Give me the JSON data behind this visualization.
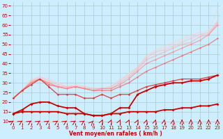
{
  "background_color": "#cceeff",
  "grid_color": "#aacccc",
  "xlabel": "Vent moyen/en rafales ( km/h )",
  "x_ticks": [
    0,
    1,
    2,
    3,
    4,
    5,
    6,
    7,
    8,
    9,
    10,
    11,
    12,
    13,
    14,
    15,
    16,
    17,
    18,
    19,
    20,
    21,
    22,
    23
  ],
  "y_ticks": [
    10,
    15,
    20,
    25,
    30,
    35,
    40,
    45,
    50,
    55,
    60,
    65,
    70
  ],
  "ylim": [
    9,
    72
  ],
  "xlim": [
    -0.3,
    23.3
  ],
  "series": [
    {
      "y": [
        14,
        15,
        15,
        15,
        15,
        15,
        14,
        14,
        14,
        13,
        13,
        14,
        14,
        15,
        15,
        15,
        15,
        16,
        16,
        17,
        17,
        18,
        18,
        19
      ],
      "color": "#cc0000",
      "lw": 1.3,
      "marker": "D",
      "ms": 2.0,
      "alpha": 1.0,
      "zorder": 5
    },
    {
      "y": [
        14,
        16,
        19,
        20,
        20,
        18,
        17,
        17,
        14,
        13,
        13,
        14,
        17,
        17,
        24,
        26,
        28,
        29,
        30,
        30,
        31,
        31,
        32,
        34
      ],
      "color": "#cc0000",
      "lw": 1.3,
      "marker": "D",
      "ms": 2.0,
      "alpha": 1.0,
      "zorder": 5
    },
    {
      "y": [
        22,
        26,
        29,
        32,
        28,
        24,
        24,
        24,
        22,
        22,
        24,
        22,
        24,
        24,
        26,
        28,
        29,
        30,
        31,
        32,
        32,
        32,
        33,
        34
      ],
      "color": "#dd3333",
      "lw": 1.0,
      "marker": "D",
      "ms": 1.8,
      "alpha": 0.85,
      "zorder": 4
    },
    {
      "y": [
        22,
        26,
        30,
        32,
        29,
        28,
        27,
        28,
        27,
        26,
        26,
        26,
        28,
        30,
        33,
        36,
        38,
        40,
        42,
        44,
        46,
        48,
        50,
        53
      ],
      "color": "#ee6666",
      "lw": 1.0,
      "marker": "D",
      "ms": 1.6,
      "alpha": 0.7,
      "zorder": 3
    },
    {
      "y": [
        22,
        26,
        30,
        32,
        30,
        28,
        27,
        28,
        27,
        26,
        27,
        27,
        29,
        32,
        36,
        40,
        42,
        44,
        46,
        48,
        50,
        52,
        55,
        60
      ],
      "color": "#ff8888",
      "lw": 1.0,
      "marker": "D",
      "ms": 1.6,
      "alpha": 0.65,
      "zorder": 3
    },
    {
      "y": [
        22,
        26,
        31,
        32,
        30,
        28,
        28,
        28,
        27,
        27,
        27,
        27,
        30,
        33,
        37,
        42,
        44,
        46,
        48,
        50,
        51,
        54,
        55,
        61
      ],
      "color": "#ffaaaa",
      "lw": 1.0,
      "marker": "D",
      "ms": 1.5,
      "alpha": 0.6,
      "zorder": 2
    },
    {
      "y": [
        22,
        26,
        31,
        33,
        31,
        29,
        28,
        28,
        28,
        27,
        27,
        28,
        31,
        34,
        38,
        43,
        46,
        47,
        49,
        51,
        53,
        55,
        56,
        62
      ],
      "color": "#ffbbbb",
      "lw": 0.9,
      "marker": "D",
      "ms": 1.5,
      "alpha": 0.55,
      "zorder": 2
    },
    {
      "y": [
        22,
        26,
        31,
        33,
        31,
        30,
        28,
        29,
        28,
        27,
        27,
        28,
        31,
        35,
        38,
        44,
        46,
        48,
        50,
        52,
        54,
        55,
        56,
        62
      ],
      "color": "#ffcccc",
      "lw": 0.9,
      "marker": "D",
      "ms": 1.4,
      "alpha": 0.5,
      "zorder": 1
    },
    {
      "y": [
        22,
        26,
        32,
        33,
        32,
        30,
        28,
        29,
        28,
        27,
        27,
        28,
        32,
        35,
        38,
        44,
        47,
        49,
        51,
        53,
        55,
        56,
        57,
        68
      ],
      "color": "#ffcccc",
      "lw": 0.9,
      "marker": "D",
      "ms": 1.4,
      "alpha": 0.45,
      "zorder": 1
    }
  ],
  "arrows": {
    "x": [
      0,
      1,
      2,
      3,
      4,
      5,
      6,
      7,
      8,
      9,
      10,
      11,
      12,
      13,
      14,
      15,
      16,
      17,
      18,
      19,
      20,
      21,
      22,
      23
    ],
    "angles_deg": [
      45,
      45,
      45,
      45,
      45,
      45,
      45,
      45,
      45,
      60,
      75,
      75,
      75,
      75,
      75,
      80,
      80,
      85,
      85,
      90,
      90,
      90,
      90,
      90
    ],
    "color": "#cc0000",
    "y_base": 10.2
  }
}
